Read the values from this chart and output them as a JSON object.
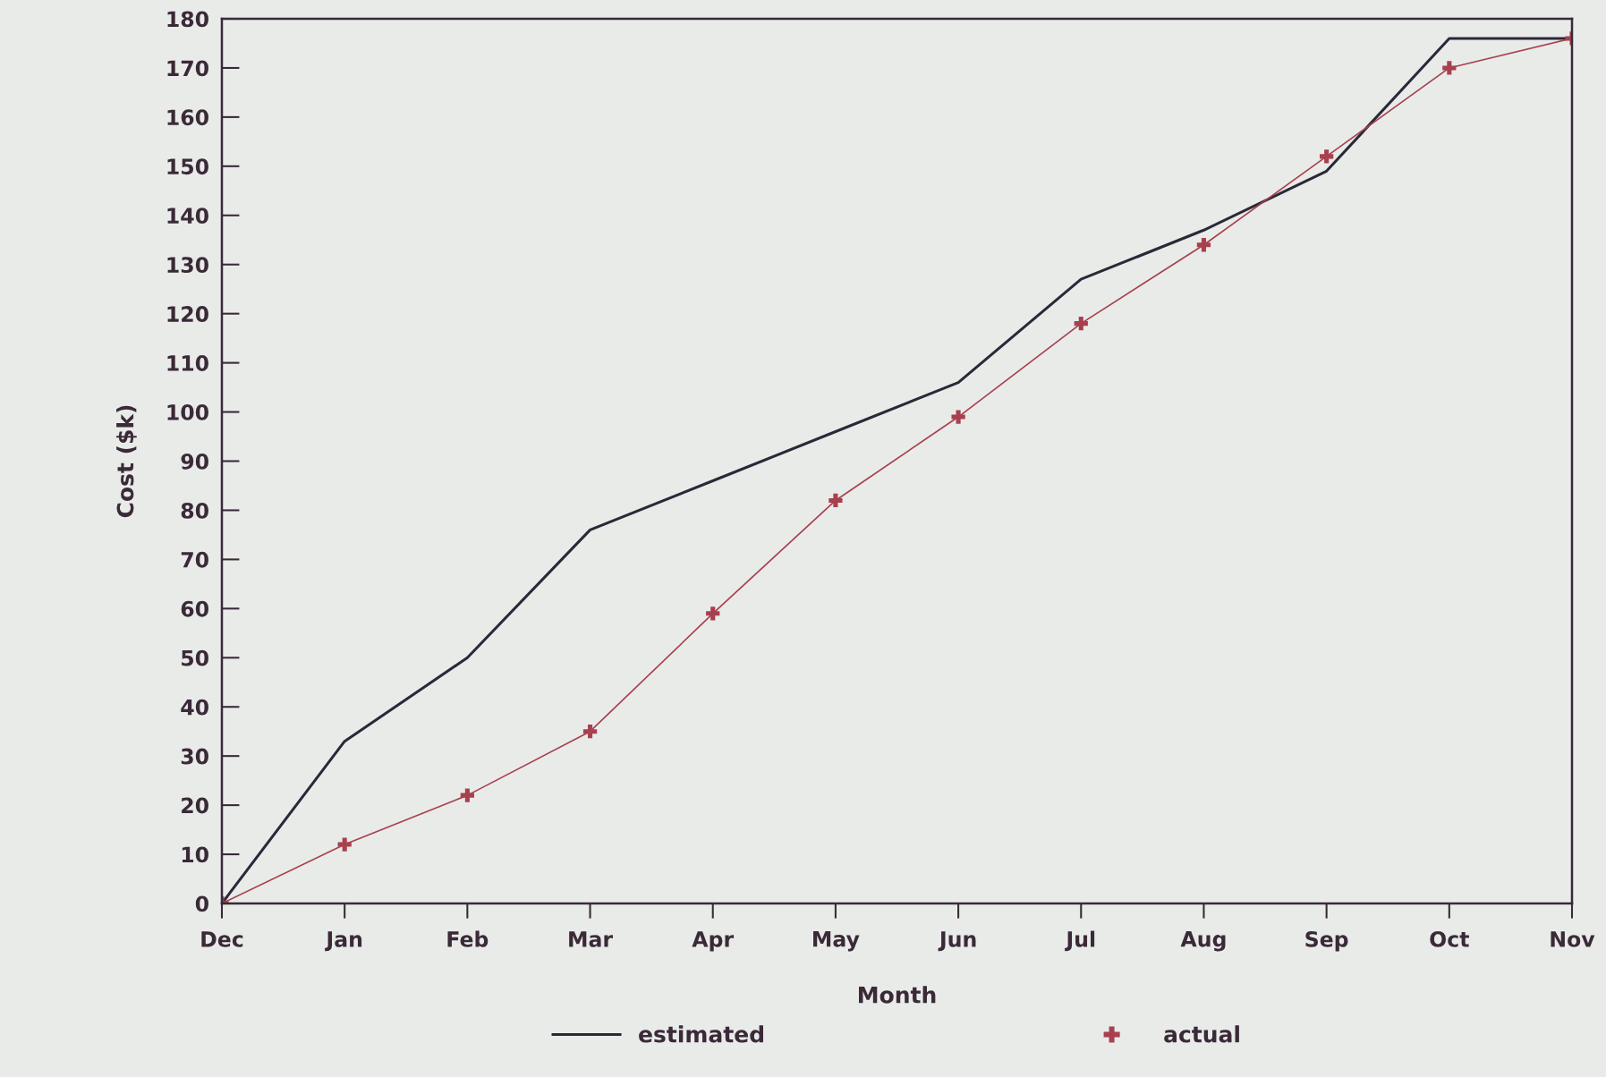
{
  "chart_data": {
    "type": "line",
    "xlabel": "Month",
    "ylabel": "Cost ($k)",
    "categories": [
      "Dec",
      "Jan",
      "Feb",
      "Mar",
      "Apr",
      "May",
      "Jun",
      "Jul",
      "Aug",
      "Sep",
      "Oct",
      "Nov"
    ],
    "series": [
      {
        "name": "estimated",
        "color": "#2b2838",
        "marker": "none",
        "values": [
          0,
          33,
          50,
          76,
          86,
          96,
          106,
          127,
          137,
          149,
          176,
          176
        ]
      },
      {
        "name": "actual",
        "color": "#a8404e",
        "marker": "cross",
        "values": [
          0,
          12,
          22,
          35,
          59,
          82,
          99,
          118,
          134,
          152,
          170,
          176
        ]
      }
    ],
    "ylim": [
      0,
      180
    ],
    "yticks": [
      0,
      10,
      20,
      30,
      40,
      50,
      60,
      70,
      80,
      90,
      100,
      110,
      120,
      130,
      140,
      150,
      160,
      170,
      180
    ],
    "grid": false,
    "legend": "bottom"
  }
}
